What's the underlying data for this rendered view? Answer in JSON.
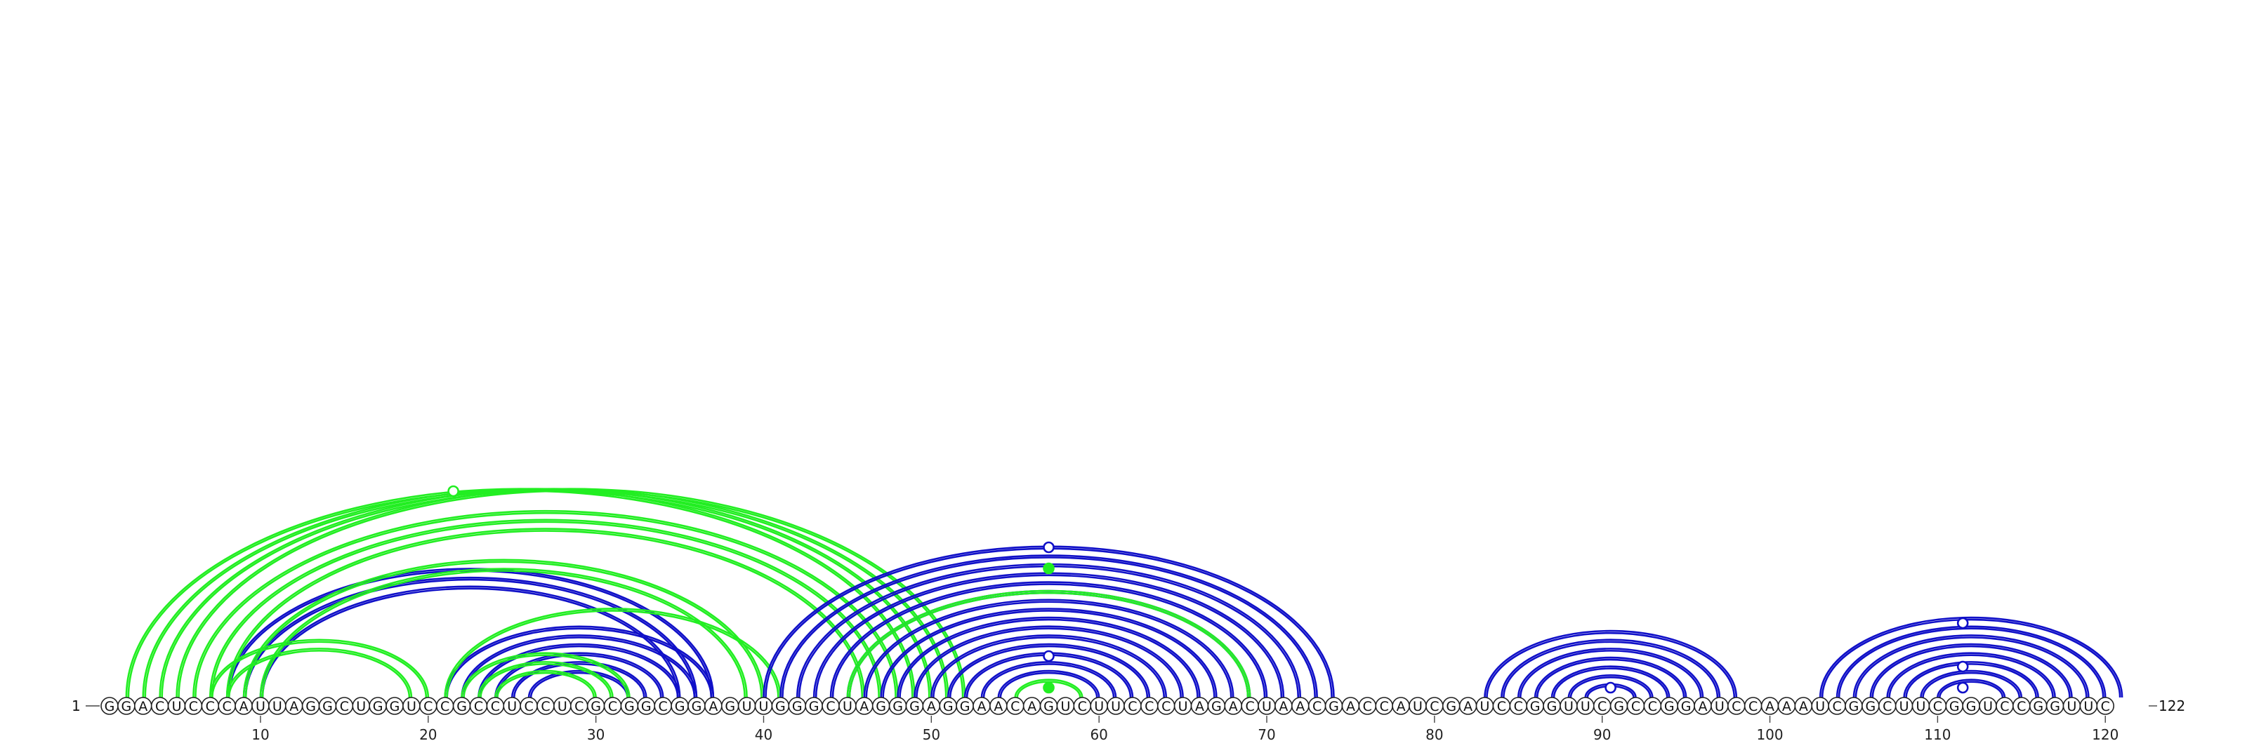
{
  "sequence": "GGACUCCCAUUAGGCUGGUCCGCCUCCUCGCGGCGGAGUUGGGCUAGGGAGGAACAGUCUUCCCUAGACUAACGACCAUCGAUCCGGUUCGCCGGAUCCAAAUCGGCUUCGGUCCGGUUC",
  "start_label": "1",
  "end_label": "122",
  "ticks": [
    10,
    20,
    30,
    40,
    50,
    60,
    70,
    80,
    90,
    100,
    110,
    120
  ],
  "colors": {
    "blue": "#1010c8",
    "green": "#22ee22",
    "nucleotide_stroke": "#222222"
  },
  "chart_data": {
    "type": "arc",
    "length": 122,
    "arc_groups": [
      {
        "color": "blue",
        "pairs": [
          [
            21,
            37
          ],
          [
            22,
            36
          ],
          [
            23,
            35
          ],
          [
            24,
            34
          ],
          [
            25,
            33
          ],
          [
            26,
            32
          ]
        ]
      },
      {
        "color": "green",
        "pairs": [
          [
            22,
            32
          ],
          [
            23,
            31
          ],
          [
            24,
            30
          ]
        ]
      },
      {
        "color": "blue",
        "pairs": [
          [
            8,
            37
          ],
          [
            9,
            36
          ],
          [
            10,
            35
          ]
        ]
      },
      {
        "color": "green",
        "pairs": [
          [
            7,
            20
          ],
          [
            8,
            19
          ]
        ]
      },
      {
        "color": "green",
        "pairs": [
          [
            2,
            49
          ],
          [
            3,
            50
          ],
          [
            4,
            51
          ],
          [
            5,
            52
          ],
          [
            6,
            48
          ],
          [
            7,
            47
          ],
          [
            8,
            46
          ],
          [
            9,
            40
          ],
          [
            10,
            39
          ]
        ]
      },
      {
        "color": "green",
        "pairs": [
          [
            21,
            41
          ]
        ]
      },
      {
        "color": "blue",
        "pairs": [
          [
            40,
            74
          ],
          [
            41,
            73
          ],
          [
            42,
            72
          ],
          [
            43,
            71
          ],
          [
            44,
            70
          ],
          [
            45,
            69
          ],
          [
            46,
            68
          ],
          [
            47,
            67
          ],
          [
            48,
            66
          ],
          [
            49,
            65
          ],
          [
            50,
            64
          ],
          [
            51,
            63
          ],
          [
            52,
            62
          ],
          [
            53,
            61
          ],
          [
            54,
            60
          ]
        ]
      },
      {
        "color": "green",
        "pairs": [
          [
            45,
            69
          ],
          [
            55,
            59
          ]
        ]
      },
      {
        "color": "blue",
        "pairs": [
          [
            83,
            98
          ],
          [
            84,
            97
          ],
          [
            85,
            96
          ],
          [
            86,
            95
          ],
          [
            87,
            94
          ],
          [
            88,
            93
          ],
          [
            89,
            92
          ]
        ]
      },
      {
        "color": "blue",
        "pairs": [
          [
            103,
            121
          ],
          [
            104,
            120
          ],
          [
            105,
            119
          ],
          [
            106,
            118
          ],
          [
            107,
            117
          ],
          [
            108,
            116
          ],
          [
            109,
            115
          ],
          [
            110,
            114
          ]
        ]
      }
    ],
    "markers": [
      {
        "at": 21.5,
        "level": 0.42,
        "color": "green",
        "filled": false
      },
      {
        "at": 57,
        "level": 0.68,
        "color": "blue",
        "filled": false
      },
      {
        "at": 57,
        "level": 0.6,
        "color": "green",
        "filled": true
      },
      {
        "at": 57,
        "level": 0.95,
        "color": "blue",
        "filled": false
      },
      {
        "at": 57,
        "level": 0.98,
        "color": "green",
        "filled": true
      },
      {
        "at": 90.5,
        "level": 0.92,
        "color": "blue",
        "filled": false
      },
      {
        "at": 111.5,
        "level": 0.88,
        "color": "blue",
        "filled": false
      },
      {
        "at": 111.5,
        "level": 0.96,
        "color": "blue",
        "filled": false
      },
      {
        "at": 111.5,
        "level": 0.72,
        "color": "blue",
        "filled": false
      }
    ]
  }
}
